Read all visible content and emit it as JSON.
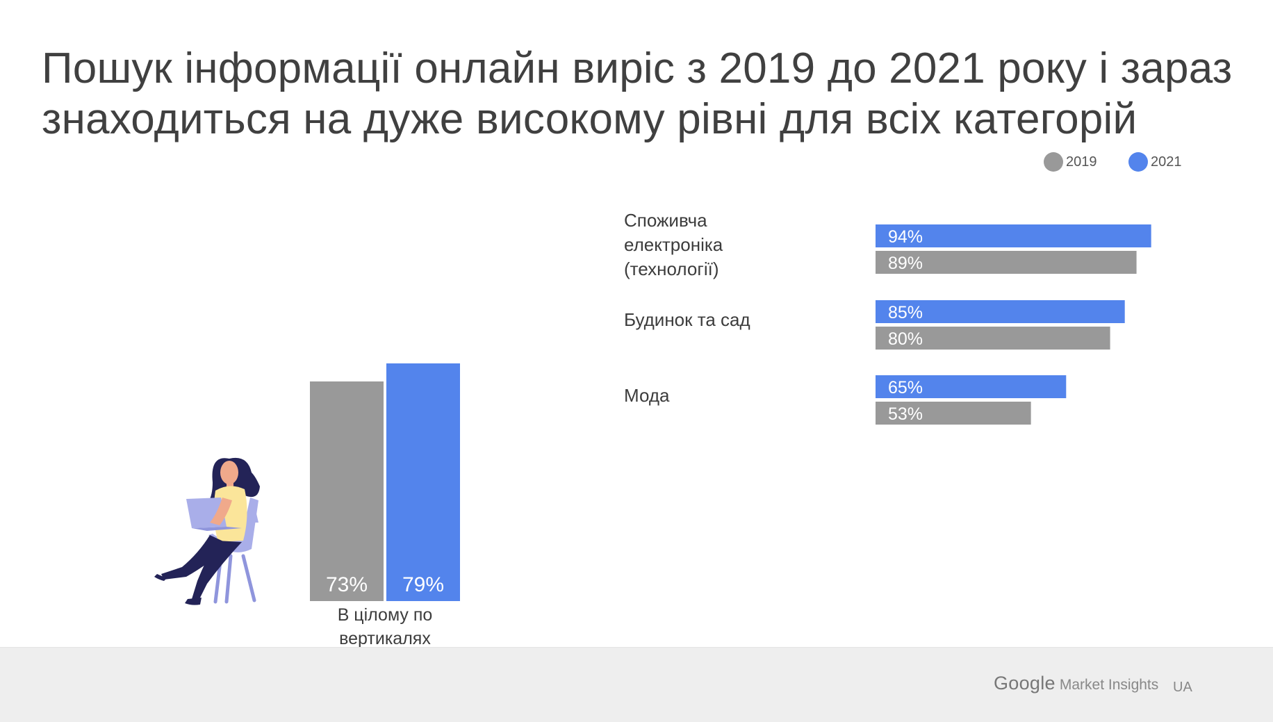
{
  "title": "Пошук інформації онлайн виріс з 2019 до 2021 року і зараз\nзнаходиться на дуже високому рівні для всіх категорій",
  "legend": [
    {
      "label": "2019",
      "color": "#999999"
    },
    {
      "label": "2021",
      "color": "#5384ec"
    }
  ],
  "chart_data": [
    {
      "type": "bar",
      "orientation": "vertical",
      "categories": [
        "В цілому по вертикалях"
      ],
      "series": [
        {
          "name": "2019",
          "values": [
            73
          ],
          "labels": [
            "73%"
          ],
          "color": "#999999"
        },
        {
          "name": "2021",
          "values": [
            79
          ],
          "labels": [
            "79%"
          ],
          "color": "#5384ec"
        }
      ],
      "ylim": [
        0,
        100
      ],
      "grid": false
    },
    {
      "type": "bar",
      "orientation": "horizontal",
      "categories": [
        "Споживча\nелектроніка\n(технології)",
        "Будинок та сад",
        "Мода"
      ],
      "series": [
        {
          "name": "2021",
          "values": [
            94,
            85,
            65
          ],
          "labels": [
            "94%",
            "85%",
            "65%"
          ],
          "color": "#5384ec"
        },
        {
          "name": "2019",
          "values": [
            89,
            80,
            53
          ],
          "labels": [
            "89%",
            "80%",
            "53%"
          ],
          "color": "#999999"
        }
      ],
      "xlim": [
        0,
        100
      ],
      "grid": false
    }
  ],
  "footer": {
    "brand": "Google",
    "product": "Market Insights",
    "region": "UA"
  }
}
